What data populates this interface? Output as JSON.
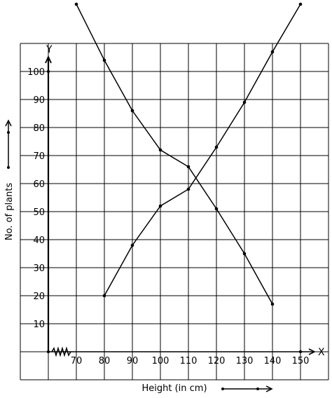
{
  "chart_data": {
    "type": "line",
    "title": "",
    "xlabel": "Height (in cm)",
    "ylabel": "No. of plants",
    "x_axis_letter": "X",
    "y_axis_letter": "Y",
    "x_ticks": [
      "70",
      "80",
      "90",
      "100",
      "110",
      "120",
      "130",
      "140",
      "150"
    ],
    "y_ticks": [
      "10",
      "20",
      "30",
      "40",
      "50",
      "60",
      "70",
      "80",
      "90",
      "100"
    ],
    "xlim": [
      60,
      160
    ],
    "ylim": [
      -10,
      110
    ],
    "grid": true,
    "series": [
      {
        "x": [
          70,
          80,
          90,
          100,
          110,
          120,
          130,
          140
        ],
        "y": [
          124,
          104,
          86,
          72,
          66,
          51,
          35,
          17
        ]
      },
      {
        "x": [
          80,
          90,
          100,
          110,
          120,
          130,
          140,
          150
        ],
        "y": [
          20,
          38,
          52,
          58,
          73,
          89,
          107,
          124
        ]
      }
    ]
  }
}
